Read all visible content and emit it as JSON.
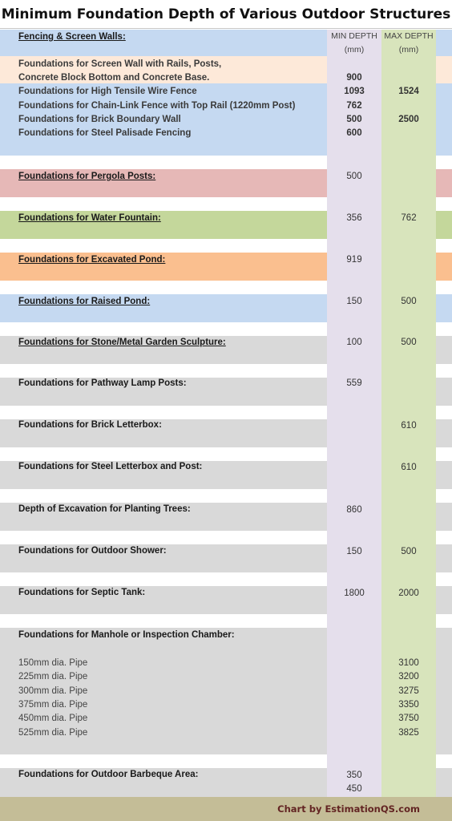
{
  "title": "Minimum Foundation Depth of Various Outdoor Structures",
  "columns": {
    "min": "MIN DEPTH",
    "max": "MAX DEPTH",
    "unit": "(mm)"
  },
  "fencing": {
    "heading": "Fencing & Screen Walls:",
    "screen_wall_line1": "Foundations for Screen Wall with Rails, Posts,",
    "screen_wall_line2": "Concrete Block Bottom and Concrete Base.",
    "screen_wall_min": "900",
    "tensile_label": "Foundations for High Tensile Wire Fence",
    "tensile_min": "1093",
    "tensile_max": "1524",
    "chainlink_label": "Foundations for Chain-Link Fence with Top Rail (1220mm Post)",
    "chainlink_min": "762",
    "brick_wall_label": "Foundations for Brick Boundary Wall",
    "brick_wall_min": "500",
    "brick_wall_max": "2500",
    "palisade_label": "Foundations for Steel Palisade Fencing",
    "palisade_min": "600"
  },
  "pergola": {
    "label": "Foundations for Pergola Posts:",
    "min": "500"
  },
  "fountain": {
    "label": "Foundations for Water Fountain:",
    "min": "356",
    "max": "762"
  },
  "excavated_pond": {
    "label": "Foundations for Excavated Pond:",
    "min": "919"
  },
  "raised_pond": {
    "label": "Foundations for Raised Pond:",
    "min": "150",
    "max": "500"
  },
  "sculpture": {
    "label": "Foundations for Stone/Metal Garden Sculpture:",
    "min": "100",
    "max": "500"
  },
  "lamp_posts": {
    "label": "Foundations for Pathway Lamp Posts:",
    "min": "559"
  },
  "brick_letterbox": {
    "label": "Foundations for Brick Letterbox:",
    "max": "610"
  },
  "steel_letterbox": {
    "label": "Foundations for Steel Letterbox and Post:",
    "max": "610"
  },
  "trees": {
    "label": "Depth of Excavation for Planting Trees:",
    "min": "860"
  },
  "shower": {
    "label": "Foundations for Outdoor Shower:",
    "min": "150",
    "max": "500"
  },
  "septic": {
    "label": "Foundations for Septic Tank:",
    "min": "1800",
    "max": "2000"
  },
  "manhole": {
    "label": "Foundations for Manhole or Inspection Chamber:",
    "pipes": [
      {
        "label": "150mm dia. Pipe",
        "max": "3100"
      },
      {
        "label": "225mm dia. Pipe",
        "max": "3200"
      },
      {
        "label": "300mm dia. Pipe",
        "max": "3275"
      },
      {
        "label": "375mm dia. Pipe",
        "max": "3350"
      },
      {
        "label": "450mm dia. Pipe",
        "max": "3750"
      },
      {
        "label": "525mm dia. Pipe",
        "max": "3825"
      }
    ]
  },
  "barbeque": {
    "label": "Foundations for Outdoor Barbeque Area:",
    "min1": "350",
    "min2": "450"
  },
  "footer": "Chart by EstimationQS.com",
  "colors": {
    "blue": "#c5d9f1",
    "peach": "#fde9d9",
    "pink": "#e6b8b7",
    "green": "#c4d79b",
    "orange": "#fabf8f",
    "gray": "#d9d9d9",
    "lavender": "#e5dfec",
    "light_green": "#d8e4bc",
    "footer": "#c4bd97",
    "footer_text": "#632523"
  }
}
